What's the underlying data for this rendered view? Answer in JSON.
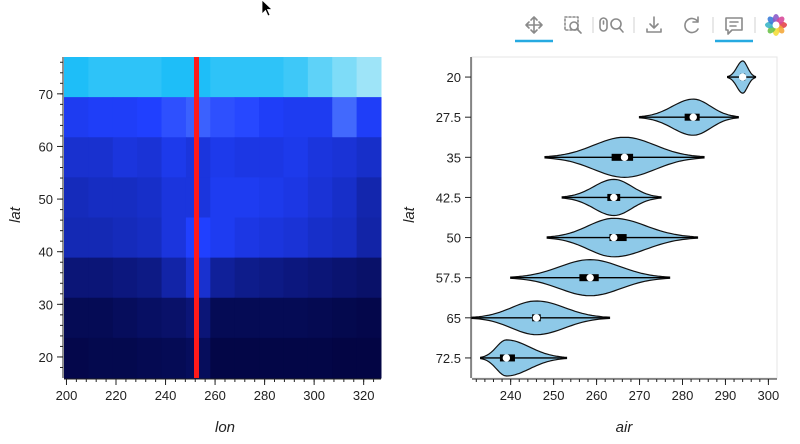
{
  "toolbar": {
    "tools": [
      {
        "name": "pan-icon",
        "active": true
      },
      {
        "name": "box-zoom-icon",
        "active": false
      },
      {
        "name": "wheel-zoom-icon",
        "active": false
      },
      {
        "name": "save-icon",
        "active": false
      },
      {
        "name": "reset-icon",
        "active": false
      },
      {
        "name": "hover-icon",
        "active": true
      },
      {
        "name": "bokeh-logo-icon",
        "active": false
      }
    ],
    "active_color": "#26aae1"
  },
  "chart_data": [
    {
      "type": "heatmap",
      "xlabel": "lon",
      "ylabel": "lat",
      "xlim": [
        199,
        327
      ],
      "ylim": [
        16,
        77
      ],
      "x_ticks": [
        200,
        220,
        240,
        260,
        280,
        300,
        320
      ],
      "y_ticks": [
        20,
        30,
        40,
        50,
        60,
        70
      ],
      "columns": [
        200,
        210,
        220,
        230,
        240,
        250,
        260,
        270,
        280,
        290,
        300,
        310,
        320
      ],
      "rows": [
        72.5,
        65,
        57.5,
        50,
        42.5,
        35,
        27.5,
        20
      ],
      "color_low": "#000033",
      "color_mid": "#2040ff",
      "color_high": "#a8e4f8",
      "values": [
        [
          0.78,
          0.8,
          0.8,
          0.8,
          0.78,
          0.78,
          0.8,
          0.8,
          0.8,
          0.82,
          0.86,
          0.9,
          0.94
        ],
        [
          0.56,
          0.58,
          0.58,
          0.6,
          0.64,
          0.68,
          0.64,
          0.62,
          0.58,
          0.56,
          0.56,
          0.7,
          0.58
        ],
        [
          0.46,
          0.46,
          0.5,
          0.48,
          0.54,
          0.5,
          0.54,
          0.52,
          0.52,
          0.54,
          0.5,
          0.48,
          0.44
        ],
        [
          0.4,
          0.42,
          0.42,
          0.44,
          0.5,
          0.5,
          0.56,
          0.56,
          0.54,
          0.52,
          0.48,
          0.44,
          0.36
        ],
        [
          0.38,
          0.38,
          0.4,
          0.42,
          0.5,
          0.6,
          0.56,
          0.52,
          0.5,
          0.48,
          0.44,
          0.42,
          0.34
        ],
        [
          0.2,
          0.2,
          0.22,
          0.24,
          0.34,
          0.46,
          0.3,
          0.26,
          0.24,
          0.22,
          0.2,
          0.18,
          0.16
        ],
        [
          0.1,
          0.1,
          0.12,
          0.14,
          0.16,
          0.2,
          0.1,
          0.1,
          0.1,
          0.1,
          0.09,
          0.08,
          0.07
        ],
        [
          0.07,
          0.08,
          0.08,
          0.09,
          0.1,
          0.12,
          0.06,
          0.06,
          0.06,
          0.06,
          0.06,
          0.05,
          0.05
        ]
      ],
      "marker_line": {
        "lon": 252.5,
        "color": "#ff1a1a"
      }
    },
    {
      "type": "violin",
      "xlabel": "air",
      "ylabel": "lat",
      "xlim": [
        231,
        302
      ],
      "x_ticks": [
        240,
        250,
        260,
        270,
        280,
        290,
        300
      ],
      "categories": [
        "20",
        "27.5",
        "35",
        "42.5",
        "50",
        "57.5",
        "65",
        "72.5"
      ],
      "fill_color": "#8ec9e8",
      "violins": [
        {
          "min": 290.5,
          "q1": 293.5,
          "median": 294.0,
          "q3": 294.6,
          "max": 297.0,
          "width": 0.4
        },
        {
          "min": 270.0,
          "q1": 280.5,
          "median": 282.5,
          "q3": 284.0,
          "max": 293.0,
          "width": 0.45
        },
        {
          "min": 248.0,
          "q1": 263.5,
          "median": 266.5,
          "q3": 268.5,
          "max": 285.0,
          "width": 0.5
        },
        {
          "min": 252.0,
          "q1": 262.5,
          "median": 264.0,
          "q3": 265.5,
          "max": 275.0,
          "width": 0.45
        },
        {
          "min": 248.5,
          "q1": 263.0,
          "median": 264.0,
          "q3": 267.0,
          "max": 283.5,
          "width": 0.48
        },
        {
          "min": 240.0,
          "q1": 256.0,
          "median": 258.5,
          "q3": 260.5,
          "max": 277.0,
          "width": 0.45
        },
        {
          "min": 231.0,
          "q1": 245.0,
          "median": 246.0,
          "q3": 247.0,
          "max": 263.0,
          "width": 0.42
        },
        {
          "min": 233.0,
          "q1": 237.5,
          "median": 239.0,
          "q3": 241.0,
          "max": 253.0,
          "width": 0.45
        }
      ]
    }
  ]
}
